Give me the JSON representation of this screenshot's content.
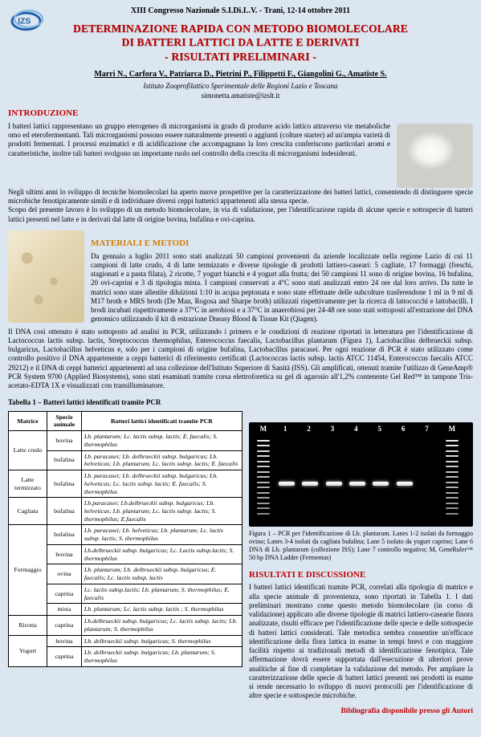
{
  "conference": "XIII Congresso Nazionale S.I.Di.L.V. - Trani, 12-14 ottobre 2011",
  "title": {
    "line1": "DETERMINAZIONE RAPIDA CON METODO BIOMOLECOLARE",
    "line2": "DI BATTERI LATTICI DA LATTE E DERIVATI",
    "line3": "- RISULTATI PRELIMINARI -"
  },
  "authors": "Marri N., Carfora V., Patriarca D., Pietrini P., Filippetti F., Giangolini G., Amatiste S.",
  "affiliation": "Istituto Zooprofilattico Sperimentale delle Regioni Lazio e Toscana",
  "email": "simonetta.amatiste@izslt.it",
  "sections": {
    "intro_head": "INTRODUZIONE",
    "intro_p1": "I batteri lattici rappresentano un gruppo eterogeneo di microrganismi in grado di produrre acido lattico attraverso vie metaboliche omo ed eterofermentanti. Tali microrganismi possono essere naturalmente presenti o aggiunti (colture starter) ad un'ampia varietà di prodotti fermentati. I processi enzimatici e di acidificazione che accompagnano la loro crescita conferiscono particolari aromi e caratteristiche, inoltre tali batteri svolgono un importante ruolo nel controllo della crescita di microrganismi indesiderati.",
    "intro_p2": "Negli ultimi anni lo sviluppo di tecniche biomolecolari ha aperto nuove prospettive per la caratterizzazione dei batteri lattici, consentendo di distinguere specie microbiche fenotipicamente simili e di individuare diversi ceppi batterici appartenenti alla stessa specie.",
    "intro_p3": "Scopo del presente lavoro è lo sviluppo di un metodo biomolecolare, in via di validazione, per l'identificazione rapida di alcune specie e sottospecie di batteri lattici presenti nel latte e in derivati dal latte di origine bovina, bufalina e ovi-caprina.",
    "mat_head": "MATERIALI E METODI",
    "mat_p1": "Da gennaio a luglio 2011 sono stati analizzati 50 campioni provenienti da aziende localizzate nella regione Lazio di cui 11 campioni di latte crudo, 4 di latte termizzato e diverse tipologie di prodotti lattiero-caseari: 5 cagliate, 17 formaggi (freschi, stagionati e a pasta filata), 2 ricotte, 7 yogurt bianchi e 4 yogurt alla frutta; dei 50 campioni 11 sono di origine bovina, 16 bufalina, 20 ovi-caprini e 3 di tipologia mista. I campioni conservati a 4°C sono stati analizzati entro 24 ore dal loro arrivo. Da tutte le matrici sono state allestite diluizioni 1:10 in acqua peptonata e sono state effettuate delle subcolture trasferendone 1 ml in 9 ml di M17 broth e MRS broth (De Man, Rogosa and Sharpe broth) utilizzati rispettivamente per la ricerca di lattococchi e lattobacilli. I brodi incubati rispettivamente a 37°C in aerobiosi e a 37°C in anaerobiosi per 24-48 ore sono stati sottoposti all'estrazione del DNA genomico utilizzando il kit di estrazione Dneasy Blood & Tissue Kit (Qiagen).",
    "mat_p2": "Il DNA così ottenuto è stato sottoposto ad analisi in PCR, utilizzando i primers e le condizioni di reazione riportati in letteratura per l'identificazione di Lactococcus lactis subsp. lactis, Streptococcus thermophilus, Enterococcus faecalis, Lactobacillus plantarum (Figura 1), Lactobacillus delbrueckii subsp. bulgaricus, Lactobacillus helveticus e, solo per i campioni di origine bufalina, Lactobacillus paracasei. Per ogni reazione di PCR è stato utilizzato come controllo positivo il DNA appartenente a ceppi batterici di riferimento certificati (Lactococcus lactis subsp. lactis ATCC 11454, Enterococcus faecalis ATCC 29212) e il DNA di ceppi batterici appartenenti ad una collezione dell'Istituto Superiore di Sanità (ISS). Gli amplificati, ottenuti tramite l'utilizzo di GeneAmp® PCR System 9700 (Applied Biosystems), sono stati esaminati tramite corsa elettroforetica su gel di agarosio all'1,2% contenente Gel Red™ in tampone Tris-acetato-EDTA 1X e visualizzati con transilluminatore.",
    "res_head": "RISULTATI E DISCUSSIONE",
    "res_p": "I batteri lattici identificati tramite PCR, correlati alla tipologia di matrice e alla specie animale di provenienza, sono riportati in Tabella 1. I dati preliminari mostrano come questo metodo biomolecolare (in corso di validazione) applicato alle diverse tipologie di matrici lattiero-casearie finora analizzate, risulti efficace per l'identificazione delle specie e delle sottospecie di batteri lattici considerati. Tale metodica sembra consentire un'efficace identificazione della flora lattica in esame in tempi brevi e con maggiore facilità rispetto ai tradizionali metodi di identificazione fenotipica. Tale affermazione dovrà essere supportata dall'esecuzione di ulteriori prove analitiche al fine di completare la validazione del metodo. Per ampliare la caratterizzazione delle specie di batteri lattici presenti nei prodotti in esame si rende necessario lo sviluppo di nuovi protocolli per l'identificazione di altre specie e sottospecie microbiche."
  },
  "table": {
    "caption": "Tabella 1 – Batteri lattici identificati tramite PCR",
    "headers": [
      "Matrice",
      "Specie animale",
      "Batteri lattici identificati tramite PCR"
    ],
    "rows": [
      {
        "matrice": "Latte crudo",
        "span": 2,
        "anim": "bovina",
        "sp": "Lb. plantarum; Lc. lactis subsp. lactis; E. faecalis; S. thermophilus"
      },
      {
        "anim": "bufalina",
        "sp": "Lb. paracasei; Lb. delbrueckii subsp. bulgaricus; Lb. helveticus; Lb. plantarum; Lc. lactis subsp. lactis; E. faecalis"
      },
      {
        "matrice": "Latte termizzato",
        "span": 1,
        "anim": "bufalina",
        "sp": "Lb. paracasei; Lb. delbrueckii subsp. bulgaricus; Lb. helveticus; Lc. lactis subsp. lactis; E. faecalis; S. thermophilus"
      },
      {
        "matrice": "Cagliata",
        "span": 1,
        "anim": "bufalina",
        "sp": "Lb.paracasei; Lb.delbrueckii subsp. bulgaricus; Lb. helveticus; Lb. plantarum; Lc. lactis subsp. lactis; S. thermophilus; E.faecalis"
      },
      {
        "matrice": "Formaggio",
        "span": 5,
        "anim": "bufalina",
        "sp": "Lb. paracasei; Lb. helveticus; Lb. plantarum; Lc. lactis subsp. lactis; S. thermophilus"
      },
      {
        "anim": "bovina",
        "sp": "Lb.delbrueckii subsp. bulgaricus; Lc. Lactis subsp.lactis; S. thermophilus"
      },
      {
        "anim": "ovina",
        "sp": "Lb. plantarum; Lb. delbrueckii subsp. bulgaricus; E. faecalis; Lc. lactis subsp. lactis"
      },
      {
        "anim": "caprina",
        "sp": "Lc. lactis subsp.lactis; Lb. plantarum; S. thermophilus; E. faecalis"
      },
      {
        "anim": "mista",
        "sp": "Lb. plantarum; Lc. lactis subsp. lactis ; S. thermophilus"
      },
      {
        "matrice": "Ricotta",
        "span": 1,
        "anim": "caprina",
        "sp": "Lb.delbrueckii subsp. bulgaricus; Lc. lactis subsp. lactis; Lb. plantarum; S. thermophilus"
      },
      {
        "matrice": "Yogurt",
        "span": 2,
        "anim": "bovina",
        "sp": "Lb. delbrueckii subsp. bulgaricus; S. thermophilus"
      },
      {
        "anim": "caprina",
        "sp": "Lb. delbrueckii subsp. bulgaricus; Lb. plantarum; S. thermophilus"
      }
    ]
  },
  "figure": {
    "lanes": [
      "M",
      "1",
      "2",
      "3",
      "4",
      "5",
      "6",
      "7",
      "M"
    ],
    "caption": "Figura 1 – PCR per l'identificazione di Lb. plantarum. Lanes 1-2 isolati da formaggio ovino; Lanes 3-4 isolati da cagliata bufalina; Lane 5 isolato da yogurt caprino; Lane 6 DNA di Lb. plantarum (collezione ISS); Lane 7 controllo negativo; M, GeneRuler™ 50 bp DNA Ladder (Fermentas)"
  },
  "footer": "Bibliografia disponibile presso gli Autori",
  "colors": {
    "accent_red": "#c00000",
    "accent_orange": "#d08000",
    "page_bg": "#dce6f0"
  }
}
